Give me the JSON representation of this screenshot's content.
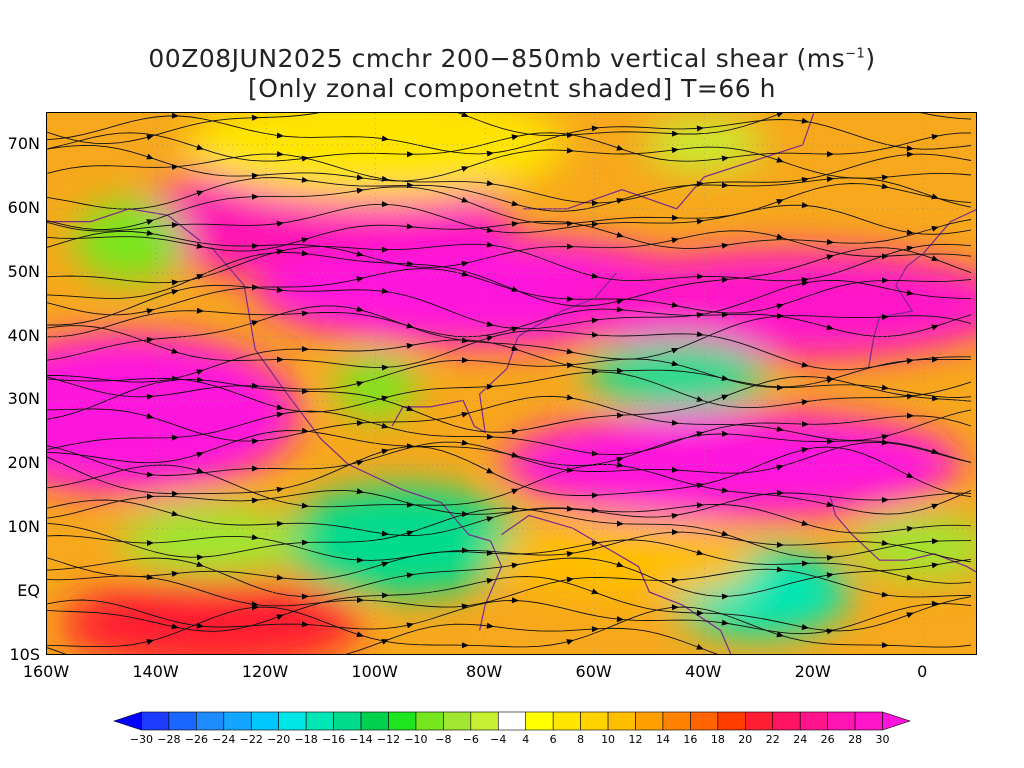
{
  "title": {
    "line1": "00Z08JUN2025 cmchr 200−850mb vertical shear (ms",
    "line1_unit_sup": "−1",
    "line1_close": ")",
    "line2": "[Only zonal componetnt shaded] T=66 h"
  },
  "map": {
    "type": "shaded-field-with-streamlines",
    "region": "North Atlantic / North America / Eastern Pacific",
    "lat_range": [
      -10,
      75
    ],
    "lon_range": [
      -160,
      10
    ],
    "lat_ticks": [
      {
        "lat": 70,
        "label": "70N"
      },
      {
        "lat": 60,
        "label": "60N"
      },
      {
        "lat": 50,
        "label": "50N"
      },
      {
        "lat": 40,
        "label": "40N"
      },
      {
        "lat": 30,
        "label": "30N"
      },
      {
        "lat": 20,
        "label": "20N"
      },
      {
        "lat": 10,
        "label": "10N"
      },
      {
        "lat": 0,
        "label": "EQ"
      },
      {
        "lat": -10,
        "label": "10S"
      }
    ],
    "lon_ticks": [
      {
        "lon": -160,
        "label": "160W"
      },
      {
        "lon": -140,
        "label": "140W"
      },
      {
        "lon": -120,
        "label": "120W"
      },
      {
        "lon": -100,
        "label": "100W"
      },
      {
        "lon": -80,
        "label": "80W"
      },
      {
        "lon": -60,
        "label": "60W"
      },
      {
        "lon": -40,
        "label": "40W"
      },
      {
        "lon": -20,
        "label": "20W"
      },
      {
        "lon": 0,
        "label": "0"
      }
    ],
    "shading_regions": [
      {
        "name": "gulf-of-alaska-jet",
        "lon": -110,
        "lat": 58,
        "value": 26
      },
      {
        "name": "canada-jet",
        "lon": -80,
        "lat": 47,
        "value": 30
      },
      {
        "name": "north-atlantic-jet",
        "lon": -25,
        "lat": 45,
        "value": 28
      },
      {
        "name": "subtropical-pacific-jet",
        "lon": -145,
        "lat": 28,
        "value": 30
      },
      {
        "name": "subtropical-atlantic-jet",
        "lon": -35,
        "lat": 20,
        "value": 30
      },
      {
        "name": "arctic-canada-weak",
        "lon": -100,
        "lat": 70,
        "value": 6
      },
      {
        "name": "bering-weak",
        "lon": -145,
        "lat": 55,
        "value": -10
      },
      {
        "name": "mid-atlantic-easterly",
        "lon": -45,
        "lat": 34,
        "value": -16
      },
      {
        "name": "east-pacific-easterly",
        "lon": -95,
        "lat": 8,
        "value": -16
      },
      {
        "name": "west-pacific-easterly",
        "lon": -130,
        "lat": 8,
        "value": -8
      },
      {
        "name": "equatorial-atlantic-easterly",
        "lon": -30,
        "lat": 0,
        "value": -18
      },
      {
        "name": "gulf-of-guinea-easterly",
        "lon": 0,
        "lat": 7,
        "value": -8
      },
      {
        "name": "central-us-high",
        "lon": -100,
        "lat": 32,
        "value": -10
      },
      {
        "name": "greenland-weak",
        "lon": -40,
        "lat": 70,
        "value": -6
      },
      {
        "name": "south-pacific-westerly",
        "lon": -130,
        "lat": -5,
        "value": 20
      },
      {
        "name": "tropical-atlantic",
        "lon": -55,
        "lat": 5,
        "value": 10
      }
    ]
  },
  "colorbar": {
    "labels": [
      "−30",
      "−28",
      "−26",
      "−24",
      "−22",
      "−20",
      "−18",
      "−16",
      "−14",
      "−12",
      "−10",
      "−8",
      "−6",
      "−4",
      "4",
      "6",
      "8",
      "10",
      "12",
      "14",
      "16",
      "18",
      "20",
      "22",
      "24",
      "26",
      "28",
      "30"
    ],
    "colors": [
      "#0000ff",
      "#1e3cff",
      "#1a66ff",
      "#1e8cff",
      "#14a5ff",
      "#00c8ff",
      "#00e6e6",
      "#00e6b4",
      "#00dc8c",
      "#00d250",
      "#1ee61e",
      "#78e61e",
      "#a0e632",
      "#c8f032",
      "#ffffff",
      "#ffff00",
      "#ffe600",
      "#ffd200",
      "#ffbe00",
      "#ffa000",
      "#ff8200",
      "#ff6400",
      "#ff3c00",
      "#ff1e32",
      "#ff1464",
      "#ff148c",
      "#ff14b4",
      "#ff14c8",
      "#ff14dc"
    ]
  }
}
